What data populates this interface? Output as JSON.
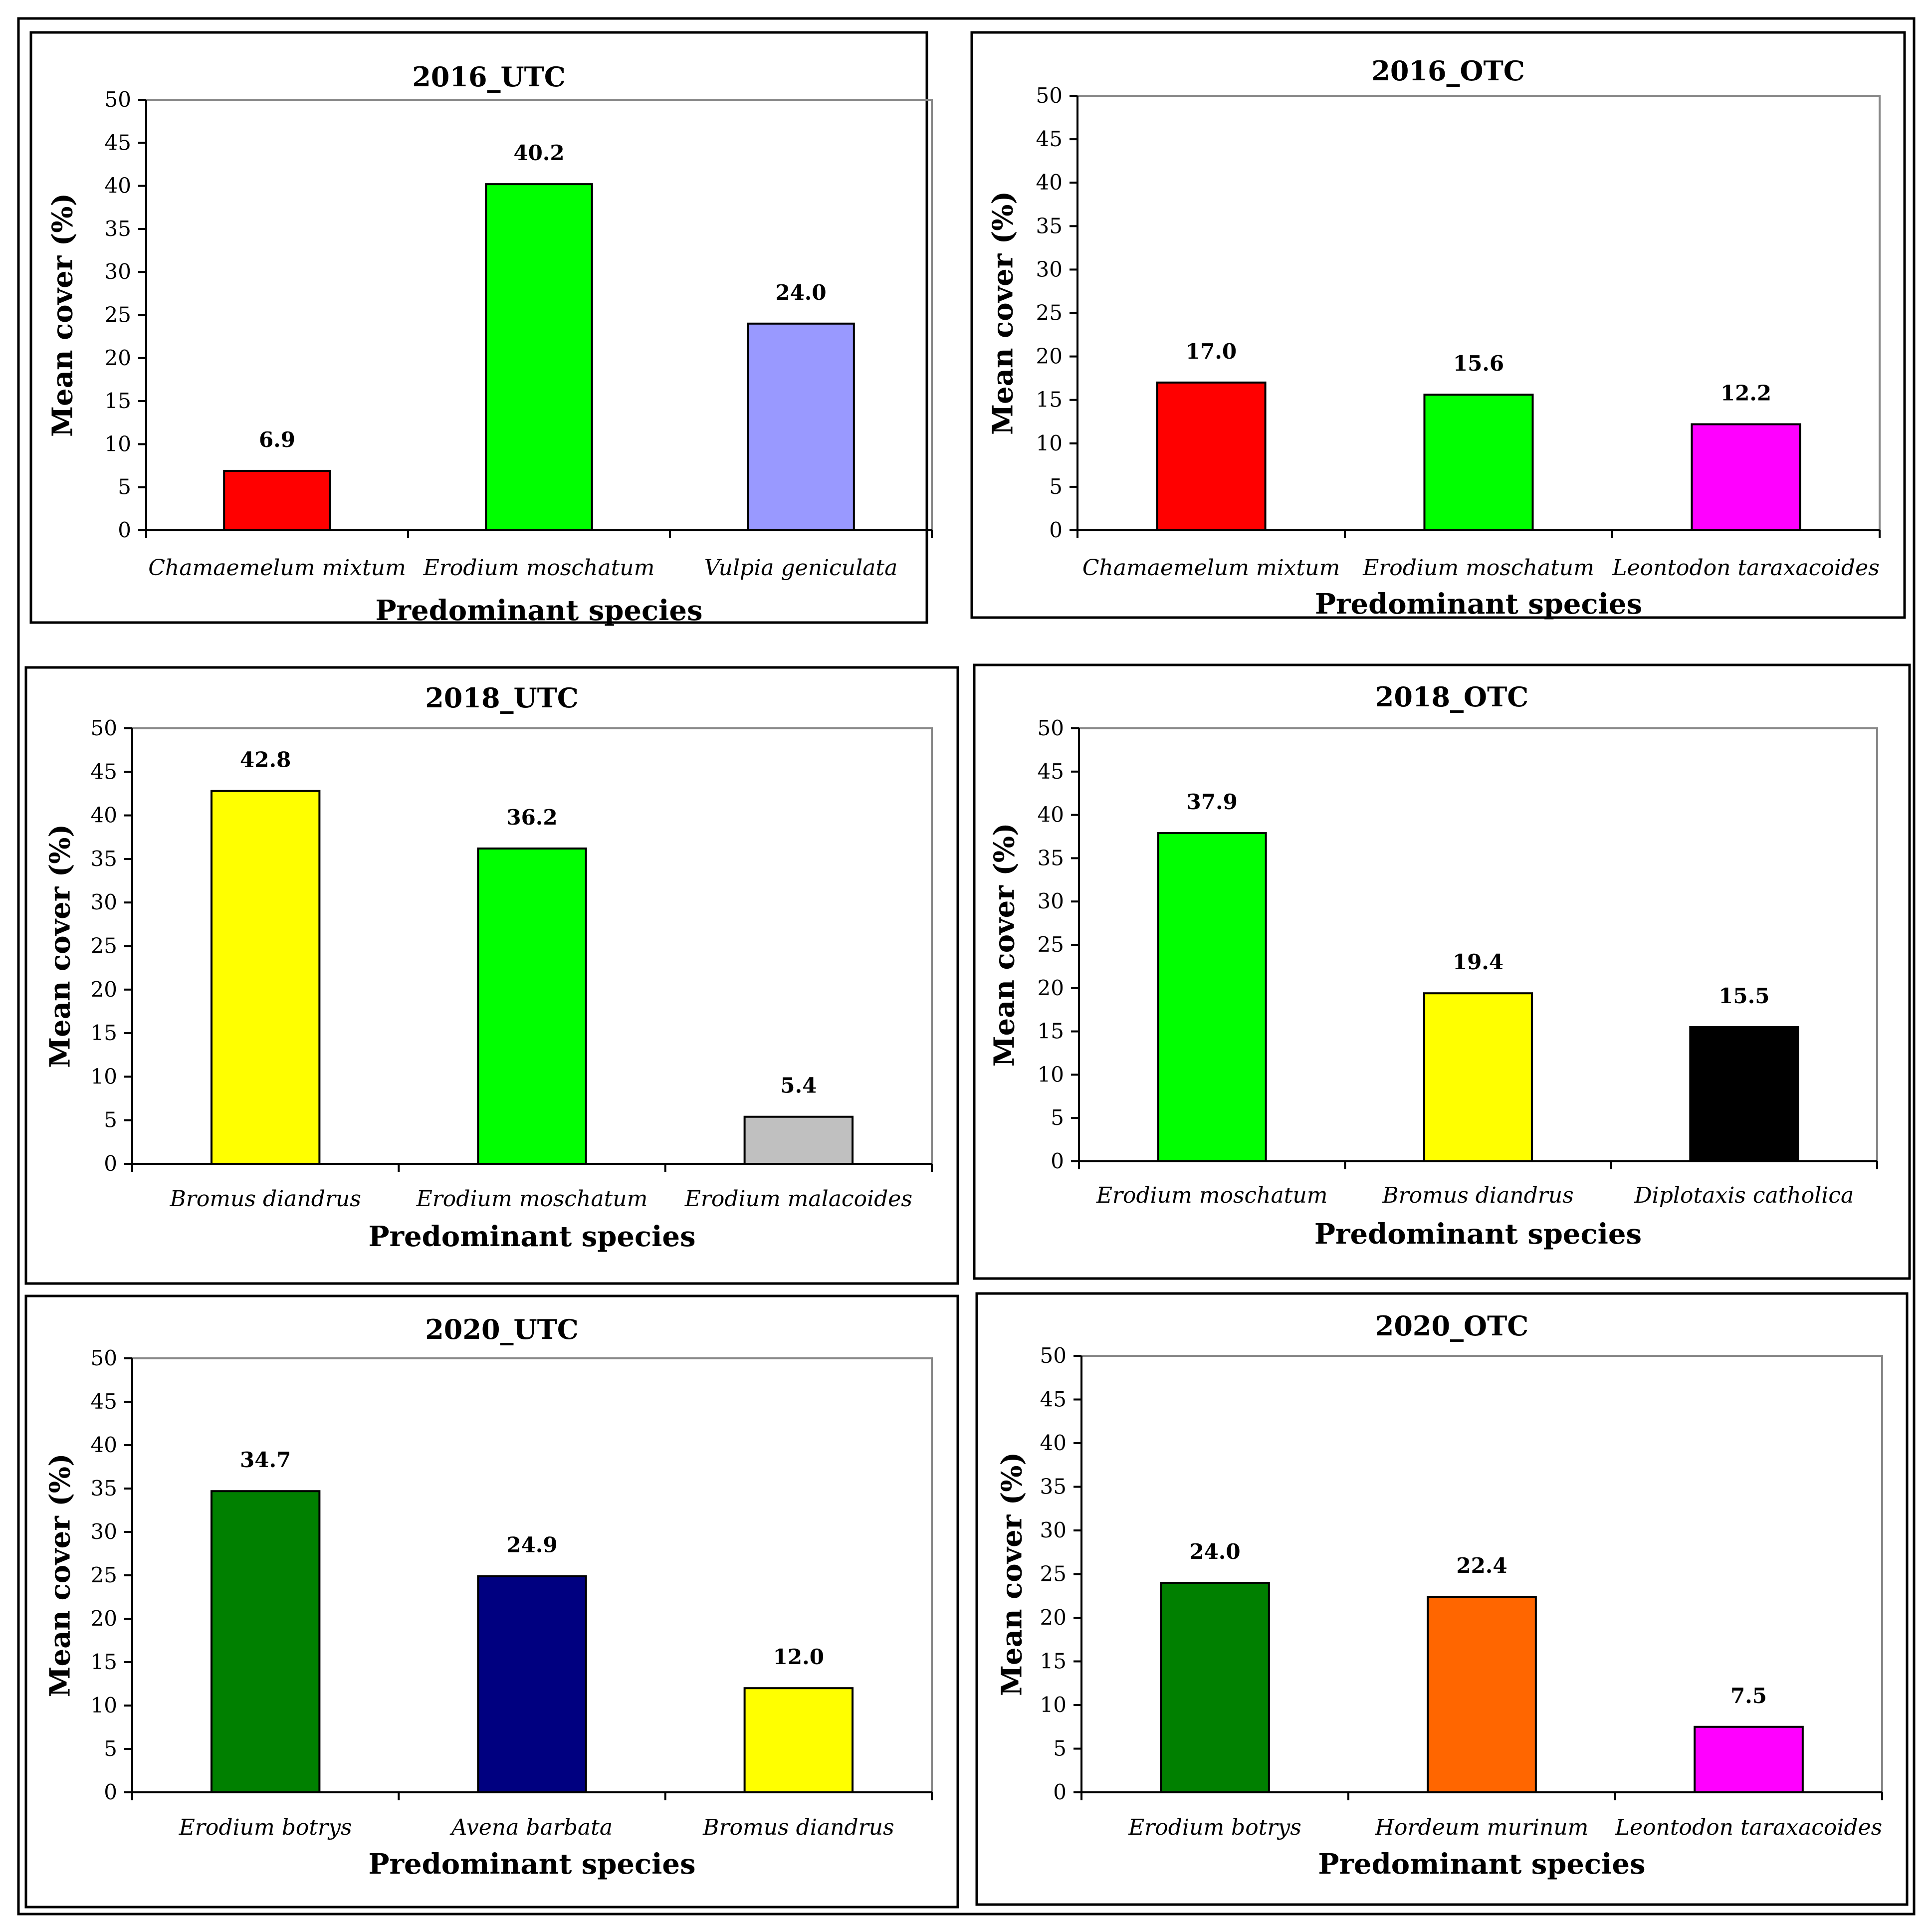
{
  "figure": {
    "background": "#ffffff",
    "border_color": "#000000"
  },
  "chart_data": [
    {
      "type": "bar",
      "title": "2016_UTC",
      "xlabel": "Predominant species",
      "ylabel": "Mean cover (%)",
      "ylim": [
        0,
        50
      ],
      "ytick_step": 5,
      "yticks": [
        "0",
        "5",
        "10",
        "15",
        "20",
        "25",
        "30",
        "35",
        "40",
        "45",
        "50"
      ],
      "grid": false,
      "categories": [
        "Chamaemelum mixtum",
        "Erodium moschatum",
        "Vulpia geniculata"
      ],
      "values": [
        6.9,
        40.2,
        24.0
      ],
      "value_labels": [
        "6.9",
        "40.2",
        "24.0"
      ],
      "colors": [
        "#ff0000",
        "#00ff00",
        "#9999ff"
      ]
    },
    {
      "type": "bar",
      "title": "2016_OTC",
      "xlabel": "Predominant species",
      "ylabel": "Mean cover (%)",
      "ylim": [
        0,
        50
      ],
      "ytick_step": 5,
      "yticks": [
        "0",
        "5",
        "10",
        "15",
        "20",
        "25",
        "30",
        "35",
        "40",
        "45",
        "50"
      ],
      "grid": false,
      "categories": [
        "Chamaemelum mixtum",
        "Erodium moschatum",
        "Leontodon taraxacoides"
      ],
      "values": [
        17.0,
        15.6,
        12.2
      ],
      "value_labels": [
        "17.0",
        "15.6",
        "12.2"
      ],
      "colors": [
        "#ff0000",
        "#00ff00",
        "#ff00ff"
      ]
    },
    {
      "type": "bar",
      "title": "2018_UTC",
      "xlabel": "Predominant species",
      "ylabel": "Mean cover (%)",
      "ylim": [
        0,
        50
      ],
      "ytick_step": 5,
      "yticks": [
        "0",
        "5",
        "10",
        "15",
        "20",
        "25",
        "30",
        "35",
        "40",
        "45",
        "50"
      ],
      "grid": false,
      "categories": [
        "Bromus diandrus",
        "Erodium moschatum",
        "Erodium malacoides"
      ],
      "values": [
        42.8,
        36.2,
        5.4
      ],
      "value_labels": [
        "42.8",
        "36.2",
        "5.4"
      ],
      "colors": [
        "#ffff00",
        "#00ff00",
        "#c0c0c0"
      ]
    },
    {
      "type": "bar",
      "title": "2018_OTC",
      "xlabel": "Predominant species",
      "ylabel": "Mean cover (%)",
      "ylim": [
        0,
        50
      ],
      "ytick_step": 5,
      "yticks": [
        "0",
        "5",
        "10",
        "15",
        "20",
        "25",
        "30",
        "35",
        "40",
        "45",
        "50"
      ],
      "grid": false,
      "categories": [
        "Erodium moschatum",
        "Bromus diandrus",
        "Diplotaxis catholica"
      ],
      "values": [
        37.9,
        19.4,
        15.5
      ],
      "value_labels": [
        "37.9",
        "19.4",
        "15.5"
      ],
      "colors": [
        "#00ff00",
        "#ffff00",
        "#000000"
      ]
    },
    {
      "type": "bar",
      "title": "2020_UTC",
      "xlabel": "Predominant species",
      "ylabel": "Mean cover (%)",
      "ylim": [
        0,
        50
      ],
      "ytick_step": 5,
      "yticks": [
        "0",
        "5",
        "10",
        "15",
        "20",
        "25",
        "30",
        "35",
        "40",
        "45",
        "50"
      ],
      "grid": false,
      "categories": [
        "Erodium botrys",
        "Avena barbata",
        "Bromus diandrus"
      ],
      "values": [
        34.7,
        24.9,
        12.0
      ],
      "value_labels": [
        "34.7",
        "24.9",
        "12.0"
      ],
      "colors": [
        "#008000",
        "#000080",
        "#ffff00"
      ]
    },
    {
      "type": "bar",
      "title": "2020_OTC",
      "xlabel": "Predominant species",
      "ylabel": "Mean cover (%)",
      "ylim": [
        0,
        50
      ],
      "ytick_step": 5,
      "yticks": [
        "0",
        "5",
        "10",
        "15",
        "20",
        "25",
        "30",
        "35",
        "40",
        "45",
        "50"
      ],
      "grid": false,
      "categories": [
        "Erodium botrys",
        "Hordeum murinum",
        "Leontodon taraxacoides"
      ],
      "values": [
        24.0,
        22.4,
        7.5
      ],
      "value_labels": [
        "24.0",
        "22.4",
        "7.5"
      ],
      "colors": [
        "#008000",
        "#ff6600",
        "#ff00ff"
      ]
    }
  ]
}
